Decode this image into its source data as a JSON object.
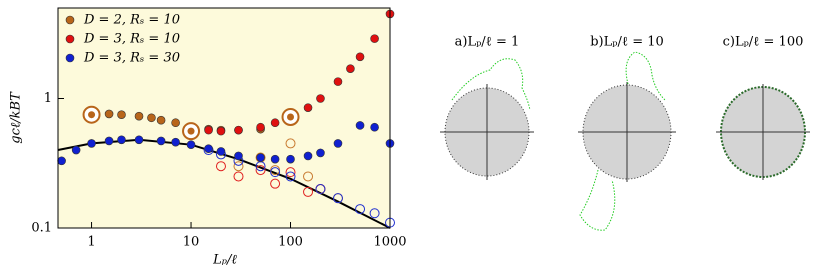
{
  "chart_data": {
    "type": "scatter",
    "x_label": "Lₚ/ℓ",
    "y_label": "gcℓ/kBT",
    "xlim": [
      0.46,
      1000
    ],
    "ylim": [
      0.1,
      5
    ],
    "log_x": true,
    "log_y": true,
    "xticks": [
      1,
      10,
      100,
      1000
    ],
    "yticks": [
      0.1,
      1
    ],
    "legend": "upper left",
    "series": [
      {
        "name": "D = 2, Rₛ = 10",
        "color": "#b8651a",
        "x": [
          1,
          1.5,
          2,
          3,
          4,
          5,
          7,
          10,
          15,
          20,
          30,
          50
        ],
        "values": [
          0.75,
          0.76,
          0.75,
          0.73,
          0.71,
          0.68,
          0.65,
          0.6,
          0.58,
          0.57,
          0.57,
          0.58
        ]
      },
      {
        "name": "D = 3, Rₛ = 10",
        "color": "#e01010",
        "x": [
          15,
          20,
          30,
          50,
          70,
          100,
          150,
          200,
          300,
          400,
          500,
          700,
          1000
        ],
        "values": [
          0.57,
          0.56,
          0.57,
          0.6,
          0.65,
          0.72,
          0.85,
          1.0,
          1.35,
          1.7,
          2.1,
          2.9,
          4.5
        ]
      },
      {
        "name": "D = 3, Rₛ = 30",
        "color": "#1020d0",
        "x": [
          0.5,
          0.7,
          1,
          1.5,
          2,
          3,
          5,
          7,
          10,
          15,
          20,
          30,
          50,
          70,
          100,
          150,
          200,
          300,
          500,
          700,
          1000
        ],
        "values": [
          0.33,
          0.4,
          0.45,
          0.47,
          0.48,
          0.48,
          0.47,
          0.46,
          0.44,
          0.41,
          0.39,
          0.36,
          0.35,
          0.34,
          0.34,
          0.36,
          0.38,
          0.45,
          0.62,
          0.6,
          0.45
        ]
      }
    ],
    "open_points": [
      {
        "color": "#c87a30",
        "x": [
          30,
          50,
          70,
          100,
          150,
          200,
          300
        ],
        "values": [
          0.3,
          0.35,
          0.28,
          0.45,
          0.25,
          0.2,
          0.17
        ]
      },
      {
        "color": "#e02020",
        "x": [
          20,
          30,
          50,
          70,
          100,
          150,
          200
        ],
        "values": [
          0.3,
          0.25,
          0.28,
          0.22,
          0.27,
          0.19,
          0.2
        ]
      },
      {
        "color": "#2030d0",
        "x": [
          15,
          20,
          30,
          50,
          70,
          100,
          200,
          300,
          500,
          700,
          1000
        ],
        "values": [
          0.4,
          0.37,
          0.33,
          0.3,
          0.27,
          0.25,
          0.2,
          0.17,
          0.14,
          0.13,
          0.11
        ]
      }
    ],
    "fit_line": {
      "color": "#000000",
      "x": [
        0.46,
        1,
        3,
        10,
        30,
        100,
        300,
        1000
      ],
      "values": [
        0.4,
        0.45,
        0.48,
        0.44,
        0.34,
        0.24,
        0.16,
        0.1
      ]
    },
    "highlights": {
      "x": [
        1,
        10,
        100
      ],
      "values": [
        0.75,
        0.56,
        0.72
      ]
    },
    "panels": [
      "a)Lₚ/ℓ = 1",
      "b)Lₚ/ℓ = 10",
      "c)Lₚ/ℓ = 100"
    ]
  }
}
